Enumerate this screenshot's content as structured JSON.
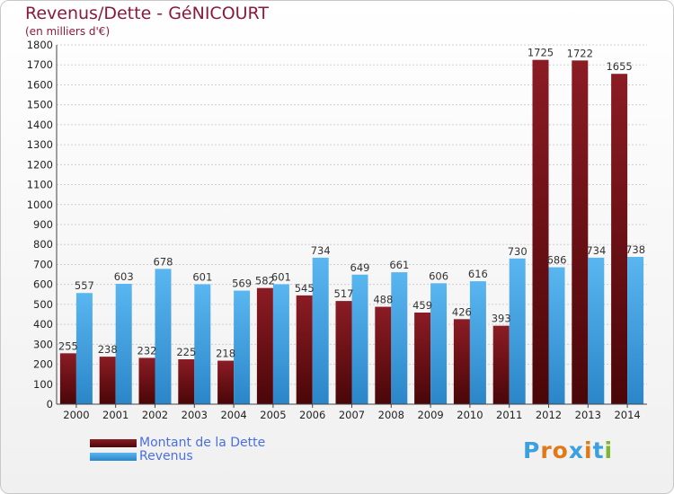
{
  "header": {
    "title": "Revenus/Dette - GéNICOURT",
    "subtitle": "(en milliers d'€)"
  },
  "colors": {
    "dette": "#8b1c24",
    "dette_dark": "#4a0608",
    "revenus": "#3a9ee0",
    "revenus_light": "#5ab6f0",
    "axis_text": "#222222",
    "grid": "#d0d0d0",
    "title": "#8a1a3a",
    "legend_text": "#4a6fe0"
  },
  "chart_data": {
    "type": "bar",
    "title": "Revenus/Dette - GéNICOURT",
    "subtitle": "(en milliers d'€)",
    "xlabel": "",
    "ylabel": "",
    "categories": [
      "2000",
      "2001",
      "2002",
      "2003",
      "2004",
      "2005",
      "2006",
      "2007",
      "2008",
      "2009",
      "2010",
      "2011",
      "2012",
      "2013",
      "2014"
    ],
    "series": [
      {
        "name": "Montant de la Dette",
        "values": [
          255,
          238,
          232,
          225,
          218,
          582,
          545,
          517,
          488,
          459,
          426,
          393,
          1725,
          1722,
          1655
        ]
      },
      {
        "name": "Revenus",
        "values": [
          557,
          603,
          678,
          601,
          569,
          601,
          734,
          649,
          661,
          606,
          616,
          730,
          686,
          734,
          738
        ]
      }
    ],
    "ylim": [
      0,
      1800
    ],
    "yticks": [
      0,
      100,
      200,
      300,
      400,
      500,
      600,
      700,
      800,
      900,
      1000,
      1100,
      1200,
      1300,
      1400,
      1500,
      1600,
      1700,
      1800
    ],
    "grid": true,
    "legend": "bottom-left"
  },
  "legend": {
    "items": [
      {
        "label": "Montant de la Dette"
      },
      {
        "label": "Revenus"
      }
    ]
  },
  "logo": {
    "letters": [
      "P",
      "r",
      "o",
      "x",
      "i",
      "t",
      "i"
    ],
    "colors": [
      "#3aa0e0",
      "#e07a18",
      "#e07a18",
      "#3aa0e0",
      "#e07a18",
      "#3aa0e0",
      "#7ab830"
    ]
  }
}
